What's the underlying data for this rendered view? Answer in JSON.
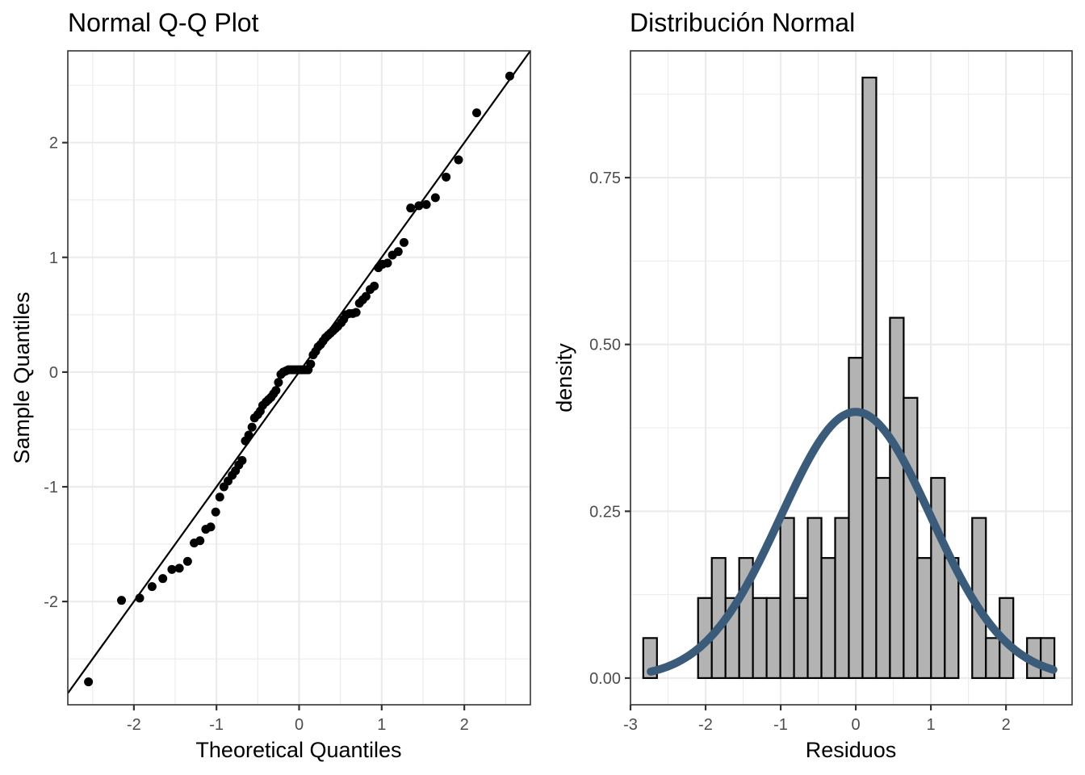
{
  "chart_data": [
    {
      "type": "scatter",
      "title": "Normal Q-Q Plot",
      "xlabel": "Theoretical Quantiles",
      "ylabel": "Sample Quantiles",
      "xlim": [
        -2.8,
        2.8
      ],
      "ylim": [
        -2.9,
        2.8
      ],
      "x_ticks": [
        -2,
        -1,
        0,
        1,
        2
      ],
      "x_tick_labels": [
        "-2",
        "-1",
        "0",
        "1",
        "2"
      ],
      "y_ticks": [
        -2,
        -1,
        0,
        1,
        2
      ],
      "y_tick_labels": [
        "-2",
        "-1",
        "0",
        "1",
        "2"
      ],
      "grid": true,
      "reference_line": {
        "slope": 1.0,
        "intercept": 0.0
      },
      "points": [
        [
          -2.55,
          -2.7
        ],
        [
          -2.15,
          -1.99
        ],
        [
          -1.93,
          -1.97
        ],
        [
          -1.78,
          -1.87
        ],
        [
          -1.65,
          -1.8
        ],
        [
          -1.54,
          -1.72
        ],
        [
          -1.45,
          -1.71
        ],
        [
          -1.35,
          -1.65
        ],
        [
          -1.27,
          -1.49
        ],
        [
          -1.2,
          -1.47
        ],
        [
          -1.13,
          -1.37
        ],
        [
          -1.07,
          -1.35
        ],
        [
          -1.01,
          -1.22
        ],
        [
          -0.96,
          -1.09
        ],
        [
          -0.91,
          -1.0
        ],
        [
          -0.86,
          -0.95
        ],
        [
          -0.81,
          -0.9
        ],
        [
          -0.77,
          -0.86
        ],
        [
          -0.73,
          -0.81
        ],
        [
          -0.69,
          -0.77
        ],
        [
          -0.65,
          -0.6
        ],
        [
          -0.61,
          -0.55
        ],
        [
          -0.57,
          -0.48
        ],
        [
          -0.54,
          -0.4
        ],
        [
          -0.5,
          -0.37
        ],
        [
          -0.47,
          -0.34
        ],
        [
          -0.44,
          -0.29
        ],
        [
          -0.4,
          -0.26
        ],
        [
          -0.37,
          -0.24
        ],
        [
          -0.34,
          -0.22
        ],
        [
          -0.31,
          -0.19
        ],
        [
          -0.28,
          -0.16
        ],
        [
          -0.25,
          -0.09
        ],
        [
          -0.22,
          -0.02
        ],
        [
          -0.19,
          0.0
        ],
        [
          -0.16,
          0.01
        ],
        [
          -0.13,
          0.02
        ],
        [
          -0.1,
          0.02
        ],
        [
          -0.07,
          0.02
        ],
        [
          -0.04,
          0.02
        ],
        [
          -0.01,
          0.02
        ],
        [
          0.02,
          0.02
        ],
        [
          0.05,
          0.02
        ],
        [
          0.08,
          0.02
        ],
        [
          0.11,
          0.02
        ],
        [
          0.14,
          0.07
        ],
        [
          0.17,
          0.15
        ],
        [
          0.2,
          0.18
        ],
        [
          0.23,
          0.22
        ],
        [
          0.26,
          0.24
        ],
        [
          0.29,
          0.27
        ],
        [
          0.32,
          0.3
        ],
        [
          0.35,
          0.32
        ],
        [
          0.38,
          0.34
        ],
        [
          0.41,
          0.36
        ],
        [
          0.44,
          0.38
        ],
        [
          0.47,
          0.4
        ],
        [
          0.51,
          0.43
        ],
        [
          0.54,
          0.46
        ],
        [
          0.57,
          0.5
        ],
        [
          0.61,
          0.51
        ],
        [
          0.65,
          0.51
        ],
        [
          0.69,
          0.52
        ],
        [
          0.73,
          0.6
        ],
        [
          0.77,
          0.63
        ],
        [
          0.81,
          0.66
        ],
        [
          0.86,
          0.72
        ],
        [
          0.91,
          0.75
        ],
        [
          0.96,
          0.91
        ],
        [
          1.01,
          0.94
        ],
        [
          1.07,
          0.95
        ],
        [
          1.13,
          1.02
        ],
        [
          1.2,
          1.05
        ],
        [
          1.27,
          1.13
        ],
        [
          1.35,
          1.43
        ],
        [
          1.45,
          1.45
        ],
        [
          1.54,
          1.46
        ],
        [
          1.65,
          1.52
        ],
        [
          1.78,
          1.7
        ],
        [
          1.93,
          1.85
        ],
        [
          2.15,
          2.26
        ],
        [
          2.55,
          2.58
        ]
      ]
    },
    {
      "type": "bar",
      "subtype": "histogram_with_density",
      "title": "Distribución Normal",
      "xlabel": "Residuos",
      "ylabel": "density",
      "xlim": [
        -3.0,
        2.88
      ],
      "ylim": [
        -0.04,
        0.94
      ],
      "x_ticks": [
        -3,
        -2,
        -1,
        0,
        1,
        2
      ],
      "x_tick_labels": [
        "-3",
        "-2",
        "-1",
        "0",
        "1",
        "2"
      ],
      "y_ticks": [
        0.0,
        0.25,
        0.5,
        0.75
      ],
      "y_tick_labels": [
        "0.00",
        "0.25",
        "0.50",
        "0.75"
      ],
      "grid": true,
      "bins": {
        "start": -2.83,
        "width": 0.1825,
        "densities": [
          0.06,
          0,
          0,
          0,
          0.12,
          0.18,
          0.12,
          0.18,
          0.12,
          0.12,
          0.24,
          0.12,
          0.24,
          0.18,
          0.24,
          0.48,
          0.9,
          0.3,
          0.54,
          0.42,
          0.18,
          0.3,
          0.18,
          0,
          0.24,
          0.06,
          0.12,
          0,
          0.06,
          0.06
        ]
      },
      "bar_fill": "#b3b3b3",
      "bar_outline": "#000000",
      "density_curve": {
        "distribution": "normal",
        "mean": 0,
        "sd": 1,
        "x_range": [
          -2.73,
          2.63
        ],
        "color": "#3b5b7a"
      }
    }
  ]
}
